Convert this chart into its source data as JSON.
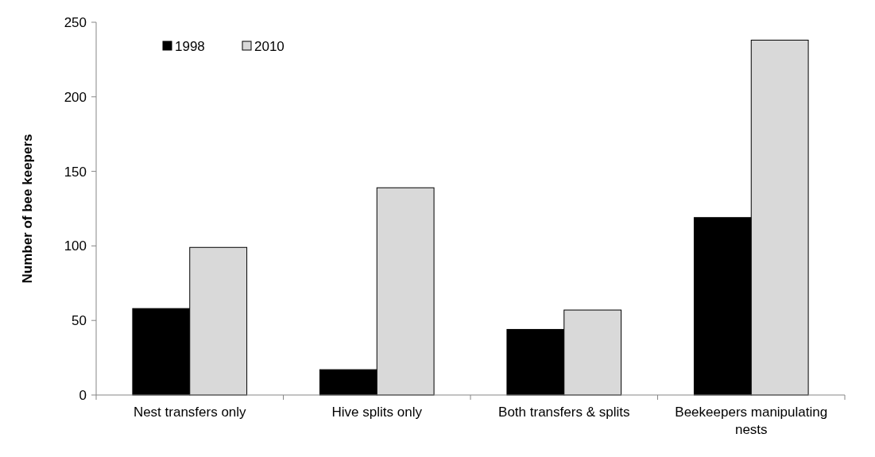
{
  "chart_data": {
    "type": "bar",
    "ylabel": "Number of bee keepers",
    "categories": [
      "Nest transfers only",
      "Hive splits only",
      "Both transfers & splits",
      "Beekeepers manipulating nests"
    ],
    "series": [
      {
        "name": "1998",
        "color": "#000000",
        "values": [
          58,
          17,
          44,
          119
        ]
      },
      {
        "name": "2010",
        "color": "#d9d9d9",
        "values": [
          99,
          139,
          57,
          238
        ]
      }
    ],
    "ylim": [
      0,
      250
    ],
    "yticks": [
      0,
      50,
      100,
      150,
      200,
      250
    ],
    "grid": false,
    "legend": "top left"
  }
}
